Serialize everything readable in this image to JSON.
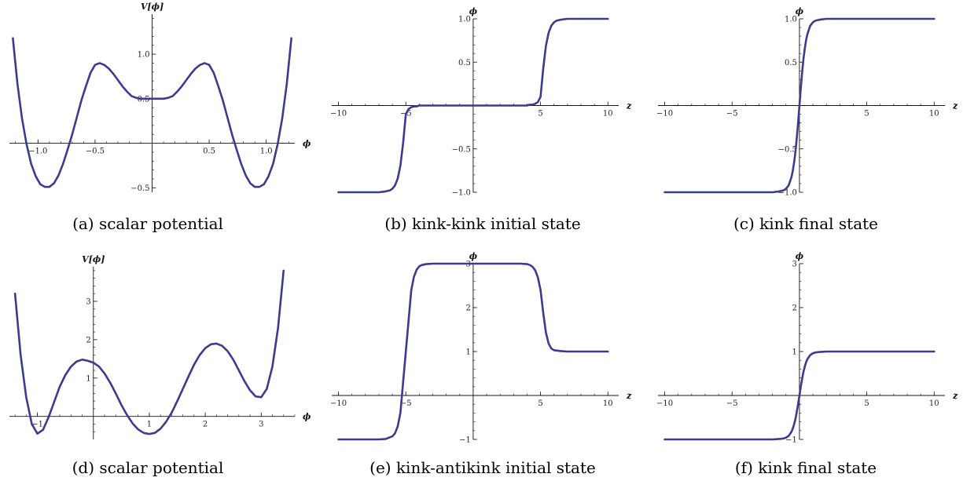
{
  "colors": {
    "curve": "#3b3b8f",
    "axis": "#111111"
  },
  "chart_data": [
    {
      "id": "a",
      "type": "line",
      "caption": "(a) scalar potential",
      "xlabel": "ϕ",
      "ylabel": "V[ϕ]",
      "xlim": [
        -1.25,
        1.25
      ],
      "ylim": [
        -0.55,
        1.45
      ],
      "xticks": [
        -1.0,
        -0.5,
        0.5,
        1.0
      ],
      "xtick_labels": [
        "−1.0",
        "−0.5",
        "0.5",
        "1.0"
      ],
      "yticks": [
        -0.5,
        0.5,
        1.0
      ],
      "ytick_labels": [
        "−0.5",
        "0.5",
        "1.0"
      ],
      "series": [
        {
          "x": [
            -1.22,
            -1.18,
            -1.14,
            -1.1,
            -1.06,
            -1.02,
            -0.98,
            -0.94,
            -0.9,
            -0.86,
            -0.82,
            -0.78,
            -0.74,
            -0.7,
            -0.66,
            -0.62,
            -0.58,
            -0.54,
            -0.5,
            -0.46,
            -0.42,
            -0.38,
            -0.34,
            -0.3,
            -0.26,
            -0.22,
            -0.18,
            -0.14,
            -0.1,
            -0.06,
            -0.02,
            0.02,
            0.06,
            0.1,
            0.14,
            0.18,
            0.22,
            0.26,
            0.3,
            0.34,
            0.38,
            0.42,
            0.46,
            0.5,
            0.54,
            0.58,
            0.62,
            0.66,
            0.7,
            0.74,
            0.78,
            0.82,
            0.86,
            0.9,
            0.94,
            0.98,
            1.02,
            1.06,
            1.1,
            1.14,
            1.18,
            1.22
          ],
          "y": [
            1.18,
            0.67,
            0.28,
            -0.01,
            -0.23,
            -0.37,
            -0.46,
            -0.49,
            -0.49,
            -0.45,
            -0.36,
            -0.23,
            -0.07,
            0.1,
            0.29,
            0.48,
            0.64,
            0.79,
            0.88,
            0.9,
            0.88,
            0.84,
            0.78,
            0.71,
            0.64,
            0.58,
            0.53,
            0.51,
            0.5,
            0.5,
            0.5,
            0.5,
            0.5,
            0.5,
            0.51,
            0.53,
            0.58,
            0.64,
            0.71,
            0.78,
            0.84,
            0.88,
            0.9,
            0.88,
            0.79,
            0.64,
            0.48,
            0.29,
            0.1,
            -0.07,
            -0.23,
            -0.36,
            -0.45,
            -0.49,
            -0.49,
            -0.46,
            -0.37,
            -0.23,
            -0.01,
            0.28,
            0.67,
            1.18
          ]
        }
      ]
    },
    {
      "id": "b",
      "type": "line",
      "caption": "(b) kink-kink initial state",
      "xlabel": "z",
      "ylabel": "ϕ",
      "xlim": [
        -10.5,
        10.8
      ],
      "ylim": [
        -1.0,
        1.0
      ],
      "xticks": [
        -10,
        -5,
        5,
        10
      ],
      "xtick_labels": [
        "−10",
        "−5",
        "5",
        "10"
      ],
      "yticks": [
        -1.0,
        -0.5,
        0.5,
        1.0
      ],
      "ytick_labels": [
        "−1.0",
        "−0.5",
        "0.5",
        "1.0"
      ],
      "series": [
        {
          "x": [
            -10,
            -9,
            -8,
            -7,
            -6.5,
            -6.2,
            -6,
            -5.8,
            -5.6,
            -5.4,
            -5.2,
            -5,
            -4.8,
            -4.6,
            -4.4,
            -4.2,
            -4,
            -3.5,
            -3,
            -2,
            -1,
            0,
            1,
            2,
            3,
            3.5,
            4,
            4.2,
            4.4,
            4.6,
            4.8,
            5,
            5.2,
            5.4,
            5.6,
            5.8,
            6,
            6.2,
            6.5,
            7,
            8,
            9,
            10
          ],
          "y": [
            -1.0,
            -1.0,
            -1.0,
            -1.0,
            -0.99,
            -0.98,
            -0.96,
            -0.92,
            -0.84,
            -0.69,
            -0.43,
            -0.1,
            -0.04,
            -0.02,
            -0.01,
            -0.01,
            0.0,
            0.0,
            0.0,
            0.0,
            0.0,
            0.0,
            0.0,
            0.0,
            0.0,
            0.0,
            0.0,
            0.01,
            0.01,
            0.02,
            0.04,
            0.1,
            0.43,
            0.69,
            0.84,
            0.92,
            0.96,
            0.98,
            0.99,
            1.0,
            1.0,
            1.0,
            1.0
          ]
        }
      ]
    },
    {
      "id": "c",
      "type": "line",
      "caption": "(c) kink final state",
      "xlabel": "z",
      "ylabel": "ϕ",
      "xlim": [
        -10.5,
        10.8
      ],
      "ylim": [
        -1.0,
        1.0
      ],
      "xticks": [
        -10,
        -5,
        5,
        10
      ],
      "xtick_labels": [
        "−10",
        "−5",
        "5",
        "10"
      ],
      "yticks": [
        -1.0,
        -0.5,
        0.5,
        1.0
      ],
      "ytick_labels": [
        "−1.0",
        "−0.5",
        "0.5",
        "1.0"
      ],
      "series": [
        {
          "x": [
            -10,
            -8,
            -6,
            -4,
            -2,
            -1.5,
            -1.2,
            -1,
            -0.8,
            -0.6,
            -0.5,
            -0.4,
            -0.3,
            -0.2,
            -0.1,
            0,
            0.1,
            0.2,
            0.3,
            0.4,
            0.5,
            0.6,
            0.8,
            1,
            1.2,
            1.5,
            2,
            4,
            6,
            8,
            10
          ],
          "y": [
            -1.0,
            -1.0,
            -1.0,
            -1.0,
            -1.0,
            -0.99,
            -0.98,
            -0.96,
            -0.92,
            -0.83,
            -0.76,
            -0.66,
            -0.54,
            -0.38,
            -0.2,
            0.0,
            0.2,
            0.38,
            0.54,
            0.66,
            0.76,
            0.83,
            0.92,
            0.96,
            0.98,
            0.99,
            1.0,
            1.0,
            1.0,
            1.0,
            1.0
          ]
        }
      ]
    },
    {
      "id": "d",
      "type": "line",
      "caption": "(d) scalar potential",
      "xlabel": "ϕ",
      "ylabel": "V[ϕ]",
      "xlim": [
        -1.5,
        3.6
      ],
      "ylim": [
        -0.6,
        3.9
      ],
      "xticks": [
        -1,
        1,
        2,
        3
      ],
      "xtick_labels": [
        "−1",
        "1",
        "2",
        "3"
      ],
      "yticks": [
        1,
        2,
        3
      ],
      "ytick_labels": [
        "1",
        "2",
        "3"
      ],
      "series": [
        {
          "x": [
            -1.4,
            -1.3,
            -1.2,
            -1.1,
            -1.0,
            -0.9,
            -0.8,
            -0.7,
            -0.6,
            -0.5,
            -0.4,
            -0.3,
            -0.2,
            -0.1,
            0.0,
            0.1,
            0.2,
            0.3,
            0.4,
            0.5,
            0.6,
            0.7,
            0.8,
            0.9,
            1.0,
            1.1,
            1.2,
            1.3,
            1.4,
            1.5,
            1.6,
            1.7,
            1.8,
            1.9,
            2.0,
            2.1,
            2.2,
            2.3,
            2.4,
            2.5,
            2.6,
            2.7,
            2.8,
            2.9,
            3.0,
            3.1,
            3.2,
            3.3,
            3.4
          ],
          "y": [
            3.2,
            1.6,
            0.5,
            -0.2,
            -0.45,
            -0.35,
            -0.02,
            0.38,
            0.78,
            1.08,
            1.3,
            1.43,
            1.48,
            1.45,
            1.4,
            1.3,
            1.12,
            0.88,
            0.6,
            0.3,
            0.04,
            -0.18,
            -0.34,
            -0.43,
            -0.46,
            -0.43,
            -0.32,
            -0.14,
            0.1,
            0.4,
            0.72,
            1.04,
            1.35,
            1.6,
            1.78,
            1.88,
            1.9,
            1.84,
            1.7,
            1.48,
            1.2,
            0.92,
            0.68,
            0.52,
            0.5,
            0.72,
            1.3,
            2.3,
            3.8
          ]
        }
      ]
    },
    {
      "id": "e",
      "type": "line",
      "caption": "(e) kink-antikink initial state",
      "xlabel": "z",
      "ylabel": "ϕ",
      "xlim": [
        -10.5,
        10.8
      ],
      "ylim": [
        -1.0,
        3.0
      ],
      "xticks": [
        -10,
        -5,
        5,
        10
      ],
      "xtick_labels": [
        "−10",
        "−5",
        "5",
        "10"
      ],
      "yticks": [
        -1,
        1,
        2,
        3
      ],
      "ytick_labels": [
        "−1",
        "1",
        "2",
        "3"
      ],
      "series": [
        {
          "x": [
            -10,
            -8,
            -7,
            -6.5,
            -6,
            -5.8,
            -5.6,
            -5.4,
            -5.2,
            -5,
            -4.8,
            -4.6,
            -4.4,
            -4.2,
            -4,
            -3.8,
            -3.5,
            -3,
            -2,
            0,
            2,
            3,
            3.5,
            4,
            4.2,
            4.4,
            4.6,
            4.8,
            5,
            5.2,
            5.4,
            5.6,
            5.8,
            6,
            6.5,
            7,
            8,
            10
          ],
          "y": [
            -1.0,
            -1.0,
            -1.0,
            -0.99,
            -0.93,
            -0.86,
            -0.7,
            -0.39,
            0.31,
            1.0,
            1.69,
            2.39,
            2.7,
            2.86,
            2.94,
            2.97,
            2.99,
            3.0,
            3.0,
            3.0,
            3.0,
            3.0,
            3.0,
            2.99,
            2.97,
            2.93,
            2.85,
            2.69,
            2.4,
            1.88,
            1.43,
            1.18,
            1.07,
            1.03,
            1.01,
            1.0,
            1.0,
            1.0
          ]
        }
      ]
    },
    {
      "id": "f",
      "type": "line",
      "caption": "(f) kink final state",
      "xlabel": "z",
      "ylabel": "ϕ",
      "xlim": [
        -10.5,
        10.8
      ],
      "ylim": [
        -1.0,
        3.0
      ],
      "xticks": [
        -10,
        -5,
        5,
        10
      ],
      "xtick_labels": [
        "−10",
        "−5",
        "5",
        "10"
      ],
      "yticks": [
        -1,
        1,
        2,
        3
      ],
      "ytick_labels": [
        "−1",
        "1",
        "2",
        "3"
      ],
      "series": [
        {
          "x": [
            -10,
            -8,
            -6,
            -4,
            -2,
            -1.5,
            -1.2,
            -1,
            -0.8,
            -0.6,
            -0.5,
            -0.4,
            -0.3,
            -0.2,
            -0.1,
            0,
            0.1,
            0.2,
            0.3,
            0.4,
            0.5,
            0.6,
            0.8,
            1,
            1.2,
            1.5,
            2,
            4,
            6,
            8,
            10
          ],
          "y": [
            -1.0,
            -1.0,
            -1.0,
            -1.0,
            -1.0,
            -0.99,
            -0.98,
            -0.96,
            -0.92,
            -0.83,
            -0.76,
            -0.66,
            -0.54,
            -0.38,
            -0.2,
            0.0,
            0.2,
            0.38,
            0.54,
            0.66,
            0.76,
            0.83,
            0.92,
            0.96,
            0.98,
            0.99,
            1.0,
            1.0,
            1.0,
            1.0,
            1.0
          ]
        }
      ]
    }
  ]
}
